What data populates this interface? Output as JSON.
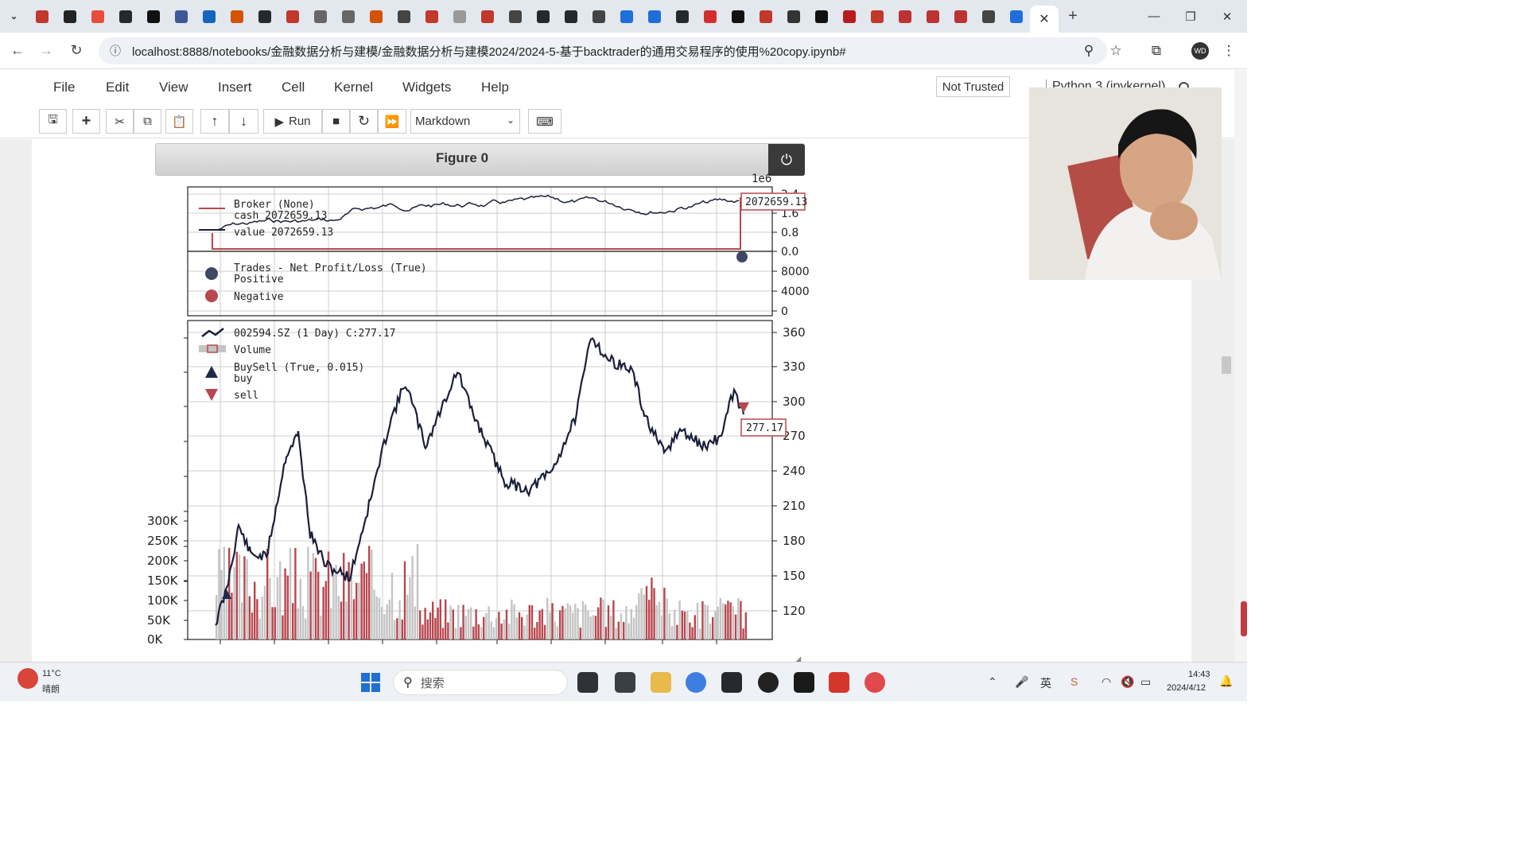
{
  "browser": {
    "url": "localhost:8888/notebooks/金融数据分析与建模/金融数据分析与建模2024/2024-5-基于backtrader的通用交易程序的使用%20copy.ipynb#",
    "tab_icons": [
      "tab-list-icon",
      "game-icon",
      "bilibili-icon",
      "opera-icon",
      "github-icon",
      "notion-icon",
      "video-icon",
      "jetbrains-icon",
      "weibo-icon",
      "github-icon",
      "bilibili-icon",
      "cloud-icon",
      "cloud-icon",
      "ant-icon",
      "book-icon",
      "avatar-icon",
      "ring-icon",
      "opera-icon",
      "bird-icon",
      "github-icon",
      "github-icon",
      "camera-icon",
      "zhihu-icon",
      "zhihu-icon",
      "github-icon",
      "cursor-icon",
      "ai-icon",
      "globe-icon",
      "m-icon",
      "k-icon",
      "book-icon",
      "loading-icon",
      "doc-icon",
      "doc-icon",
      "doc-icon",
      "paw-icon",
      "zhihu-icon"
    ],
    "profile_initials": "WD"
  },
  "jupyter": {
    "menu": [
      "File",
      "Edit",
      "View",
      "Insert",
      "Cell",
      "Kernel",
      "Widgets",
      "Help"
    ],
    "trusted_label": "Not Trusted",
    "kernel_label": "Python 3 (ipykernel)",
    "run_label": "Run",
    "cell_type": "Markdown"
  },
  "figure": {
    "title": "Figure 0",
    "corner_label": "1e6",
    "broker_legend": [
      "Broker (None)",
      "cash 2072659.13",
      "value 2072659.13"
    ],
    "broker_value_tag": "2072659.13",
    "broker_yticks": [
      "2.4",
      "1.6",
      "0.8",
      "0.0"
    ],
    "trades_legend": [
      "Trades - Net Profit/Loss (True)",
      "Positive",
      "Negative"
    ],
    "trades_yticks": [
      "8000",
      "4000",
      "0"
    ],
    "price_legend": [
      "002594.SZ (1 Day) C:277.17",
      "Volume",
      "BuySell (True, 0.015)",
      "buy",
      "sell"
    ],
    "price_tag": "277.17",
    "price_yticks": [
      "360",
      "330",
      "300",
      "270",
      "240",
      "210",
      "180",
      "150",
      "120"
    ],
    "volume_yticks": [
      "300K",
      "250K",
      "200K",
      "150K",
      "100K",
      "50K",
      "0K"
    ],
    "colors": {
      "line": "#1a1f3a",
      "red": "#b8474e",
      "grey": "#c4c4c4",
      "grid": "#cccccc"
    }
  },
  "taskbar": {
    "weather_temp": "11°C",
    "weather_desc": "晴朗",
    "search_placeholder": "搜索",
    "time": "14:43",
    "date": "2024/4/12"
  }
}
